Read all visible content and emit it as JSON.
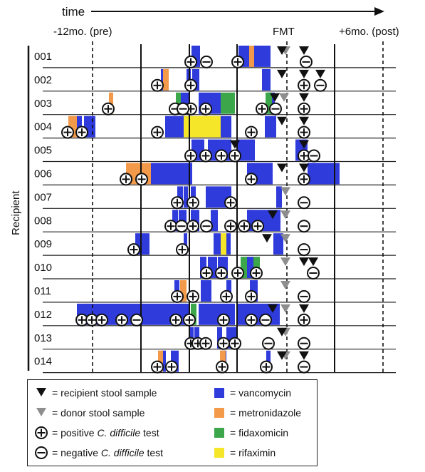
{
  "header": {
    "time_label": "time",
    "left_marker": "-12mo. (pre)",
    "fmt_marker": "FMT",
    "right_marker": "+6mo. (post)"
  },
  "y_axis_label": "Recipient",
  "recipients": [
    "001",
    "002",
    "003",
    "004",
    "005",
    "006",
    "007",
    "008",
    "009",
    "010",
    "011",
    "012",
    "013",
    "014"
  ],
  "colors": {
    "vancomycin": "#2f3bdb",
    "metronidazole": "#f39a4a",
    "fidaxomicin": "#3ca64a",
    "rifaximin": "#f5e62a",
    "recipient_stool": "#111111",
    "donor_stool": "#8e8e8e"
  },
  "legend": {
    "recipient": "= recipient stool sample",
    "donor": "= donor stool sample",
    "positive_prefix": "= positive ",
    "positive_italic": "C. difficile",
    "positive_suffix": " test",
    "negative_prefix": "= negative ",
    "negative_italic": "C. difficile",
    "negative_suffix": " test",
    "vancomycin": "= vancomycin",
    "metronidazole": "= metronidazole",
    "fidaxomicin": "= fidaxomicin",
    "rifaximin": "= rifaximin"
  },
  "timeline": [
    {
      "id": "001",
      "bars": [
        [
          "V",
          269,
          281
        ],
        [
          "V",
          335,
          380
        ],
        [
          "M",
          350,
          357
        ]
      ],
      "pos": [
        268,
        334
      ],
      "neg": [
        290,
        430
      ],
      "rec": [
        396,
        427
      ],
      "don": [
        401
      ]
    },
    {
      "id": "002",
      "bars": [
        [
          "V",
          226,
          237
        ],
        [
          "M",
          229,
          237
        ],
        [
          "V",
          262,
          268
        ],
        [
          "V",
          270,
          280
        ],
        [
          "V",
          368,
          380
        ]
      ],
      "pos": [
        221,
        268,
        427
      ],
      "neg": [
        450
      ],
      "rec": [
        396,
        427,
        450
      ],
      "don": []
    },
    {
      "id": "003",
      "bars": [
        [
          "M",
          153,
          159
        ],
        [
          "G",
          247,
          254
        ],
        [
          "V",
          254,
          266
        ],
        [
          "V",
          279,
          310
        ],
        [
          "G",
          310,
          330
        ],
        [
          "V",
          376,
          386
        ],
        [
          "G",
          373,
          382
        ]
      ],
      "pos": [
        152,
        268,
        289,
        368,
        427
      ],
      "neg": [
        246,
        257,
        387
      ],
      "rec": [
        386,
        427
      ],
      "don": [
        399
      ]
    },
    {
      "id": "004",
      "bars": [
        [
          "M",
          96,
          108
        ],
        [
          "V",
          108,
          115
        ],
        [
          "V",
          118,
          134
        ],
        [
          "V",
          232,
          325
        ],
        [
          "R",
          258,
          310
        ],
        [
          "V",
          372,
          388
        ]
      ],
      "pos": [
        95,
        115,
        221,
        353,
        427
      ],
      "neg": [],
      "rec": [
        396,
        427
      ],
      "don": []
    },
    {
      "id": "005",
      "bars": [
        [
          "V",
          269,
          287
        ],
        [
          "V",
          292,
          325
        ],
        [
          "V",
          334,
          358
        ],
        [
          "V",
          415,
          432
        ]
      ],
      "pos": [
        268,
        289,
        311,
        330,
        427
      ],
      "neg": [
        441
      ],
      "rec": [
        330,
        427
      ],
      "don": []
    },
    {
      "id": "006",
      "bars": [
        [
          "M",
          177,
          212
        ],
        [
          "V",
          212,
          270
        ],
        [
          "V",
          347,
          383
        ],
        [
          "V",
          432,
          477
        ]
      ],
      "pos": [
        177,
        199,
        353,
        427
      ],
      "neg": [],
      "rec": [
        396,
        427
      ],
      "don": []
    },
    {
      "id": "007",
      "bars": [
        [
          "V",
          249,
          257
        ],
        [
          "V",
          258,
          264
        ],
        [
          "V",
          268,
          275
        ],
        [
          "V",
          289,
          325
        ],
        [
          "V",
          388,
          396
        ]
      ],
      "pos": [
        249,
        271,
        324
      ],
      "neg": [
        427
      ],
      "rec": [],
      "don": [
        401
      ]
    },
    {
      "id": "008",
      "bars": [
        [
          "V",
          242,
          250
        ],
        [
          "V",
          251,
          262
        ],
        [
          "V",
          268,
          280
        ],
        [
          "V",
          296,
          306
        ],
        [
          "M",
          348,
          355
        ],
        [
          "V",
          347,
          394
        ]
      ],
      "pos": [
        240,
        271,
        324,
        343,
        362
      ],
      "neg": [
        255,
        290,
        427
      ],
      "rec": [
        383
      ],
      "don": [
        401
      ]
    },
    {
      "id": "009",
      "bars": [
        [
          "V",
          190,
          210
        ],
        [
          "V",
          258,
          263
        ],
        [
          "V",
          300,
          310
        ],
        [
          "R",
          310,
          318
        ],
        [
          "V",
          318,
          324
        ],
        [
          "V",
          384,
          398
        ]
      ],
      "pos": [
        188,
        256
      ],
      "neg": [
        427
      ],
      "rec": [
        375
      ],
      "don": [
        401
      ]
    },
    {
      "id": "010",
      "bars": [
        [
          "V",
          281,
          290
        ],
        [
          "V",
          292,
          305
        ],
        [
          "V",
          306,
          320
        ],
        [
          "G",
          338,
          347
        ],
        [
          "V",
          347,
          356
        ],
        [
          "G",
          356,
          365
        ]
      ],
      "pos": [
        290,
        311,
        334,
        360
      ],
      "neg": [
        440
      ],
      "rec": [
        427,
        440
      ],
      "don": [
        401
      ]
    },
    {
      "id": "011",
      "bars": [
        [
          "V",
          245,
          252
        ],
        [
          "M",
          253,
          262
        ],
        [
          "V",
          282,
          297
        ],
        [
          "V",
          318,
          325
        ],
        [
          "V",
          351,
          362
        ]
      ],
      "pos": [
        249,
        271,
        318,
        353
      ],
      "neg": [
        427
      ],
      "rec": [],
      "don": [
        401
      ]
    },
    {
      "id": "012",
      "bars": [
        [
          "M",
          117,
          128
        ],
        [
          "V",
          108,
          186
        ],
        [
          "V",
          186,
          250
        ],
        [
          "V",
          250,
          265
        ],
        [
          "G",
          268,
          276
        ],
        [
          "V",
          279,
          330
        ],
        [
          "V",
          332,
          393
        ]
      ],
      "pos": [
        115,
        129,
        143,
        171,
        247,
        266,
        314,
        353,
        427
      ],
      "neg": [
        192,
        373
      ],
      "rec": [
        383,
        427
      ],
      "don": [
        401
      ]
    },
    {
      "id": "013",
      "bars": [
        [
          "V",
          265,
          272
        ],
        [
          "V",
          273,
          280
        ],
        [
          "V",
          305,
          312
        ],
        [
          "V",
          318,
          333
        ]
      ],
      "pos": [
        268,
        278,
        289,
        314,
        330
      ],
      "neg": [
        377,
        427
      ],
      "rec": [
        396
      ],
      "don": [
        401
      ]
    },
    {
      "id": "014",
      "bars": [
        [
          "V",
          226,
          233
        ],
        [
          "M",
          222,
          229
        ],
        [
          "V",
          240,
          251
        ],
        [
          "V",
          310,
          318
        ],
        [
          "M",
          309,
          317
        ],
        [
          "V",
          374,
          380
        ]
      ],
      "pos": [
        221,
        241,
        312,
        374
      ],
      "neg": [
        427
      ],
      "rec": [
        396,
        427
      ],
      "don": [
        401
      ]
    }
  ]
}
